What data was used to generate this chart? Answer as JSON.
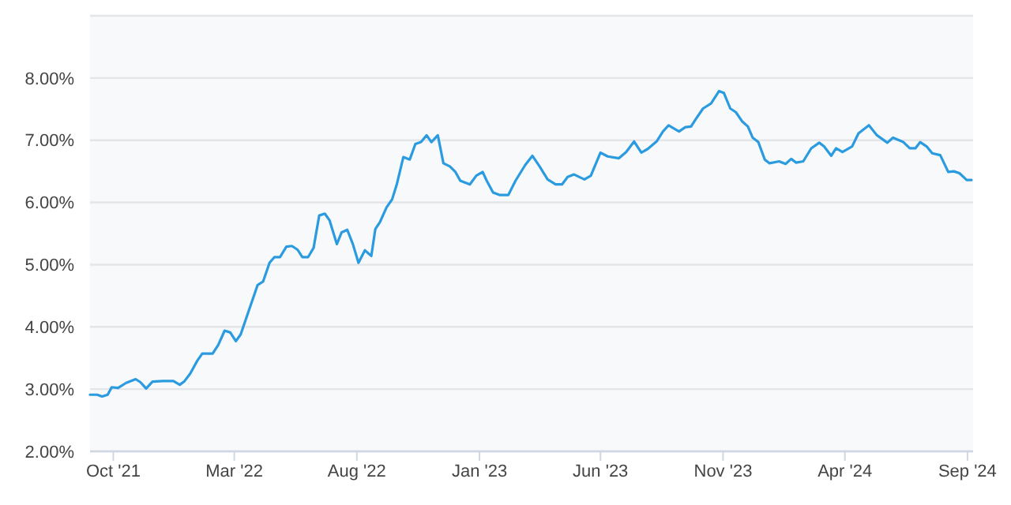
{
  "chart_data": {
    "type": "line",
    "x": [
      "2021-09-02",
      "2021-09-11",
      "2021-09-17",
      "2021-09-24",
      "2021-09-29",
      "2021-10-07",
      "2021-10-17",
      "2021-10-29",
      "2021-11-04",
      "2021-11-11",
      "2021-11-19",
      "2021-12-02",
      "2021-12-15",
      "2021-12-23",
      "2021-12-29",
      "2022-01-05",
      "2022-01-14",
      "2022-01-20",
      "2022-02-02",
      "2022-02-09",
      "2022-02-17",
      "2022-02-24",
      "2022-03-03",
      "2022-03-09",
      "2022-03-17",
      "2022-03-30",
      "2022-04-06",
      "2022-04-14",
      "2022-04-20",
      "2022-04-27",
      "2022-05-05",
      "2022-05-12",
      "2022-05-19",
      "2022-05-25",
      "2022-06-01",
      "2022-06-08",
      "2022-06-15",
      "2022-06-22",
      "2022-06-28",
      "2022-07-07",
      "2022-07-13",
      "2022-07-20",
      "2022-07-27",
      "2022-08-03",
      "2022-08-11",
      "2022-08-19",
      "2022-08-24",
      "2022-08-30",
      "2022-09-07",
      "2022-09-14",
      "2022-09-20",
      "2022-09-28",
      "2022-10-06",
      "2022-10-13",
      "2022-10-20",
      "2022-10-27",
      "2022-11-02",
      "2022-11-10",
      "2022-11-17",
      "2022-11-25",
      "2022-12-02",
      "2022-12-08",
      "2022-12-20",
      "2022-12-28",
      "2023-01-05",
      "2023-01-10",
      "2023-01-18",
      "2023-01-26",
      "2023-02-06",
      "2023-02-15",
      "2023-02-27",
      "2023-03-08",
      "2023-03-17",
      "2023-03-27",
      "2023-04-06",
      "2023-04-14",
      "2023-04-21",
      "2023-04-29",
      "2023-05-12",
      "2023-05-20",
      "2023-06-01",
      "2023-06-10",
      "2023-06-24",
      "2023-07-03",
      "2023-07-13",
      "2023-07-22",
      "2023-07-30",
      "2023-08-10",
      "2023-08-18",
      "2023-08-25",
      "2023-09-07",
      "2023-09-15",
      "2023-09-22",
      "2023-09-28",
      "2023-10-07",
      "2023-10-17",
      "2023-10-27",
      "2023-11-02",
      "2023-11-10",
      "2023-11-17",
      "2023-11-25",
      "2023-12-02",
      "2023-12-08",
      "2023-12-15",
      "2023-12-23",
      "2023-12-29",
      "2024-01-10",
      "2024-01-18",
      "2024-01-25",
      "2024-01-31",
      "2024-02-09",
      "2024-02-19",
      "2024-02-29",
      "2024-03-06",
      "2024-03-15",
      "2024-03-21",
      "2024-03-29",
      "2024-04-10",
      "2024-04-18",
      "2024-05-01",
      "2024-05-11",
      "2024-05-24",
      "2024-05-31",
      "2024-06-13",
      "2024-06-21",
      "2024-06-28",
      "2024-07-04",
      "2024-07-12",
      "2024-07-19",
      "2024-07-29",
      "2024-08-08",
      "2024-08-15",
      "2024-08-22",
      "2024-08-31",
      "2024-09-06"
    ],
    "series": [
      {
        "color": "#2b9be0",
        "values": [
          2.91,
          2.91,
          2.88,
          2.91,
          3.03,
          3.02,
          3.1,
          3.16,
          3.11,
          3.01,
          3.12,
          3.13,
          3.13,
          3.07,
          3.13,
          3.25,
          3.46,
          3.57,
          3.57,
          3.71,
          3.94,
          3.91,
          3.77,
          3.88,
          4.18,
          4.67,
          4.73,
          5.03,
          5.12,
          5.12,
          5.29,
          5.3,
          5.24,
          5.12,
          5.12,
          5.27,
          5.79,
          5.82,
          5.71,
          5.33,
          5.52,
          5.56,
          5.33,
          5.03,
          5.23,
          5.14,
          5.57,
          5.69,
          5.92,
          6.05,
          6.3,
          6.73,
          6.69,
          6.94,
          6.97,
          7.08,
          6.97,
          7.08,
          6.63,
          6.58,
          6.49,
          6.35,
          6.29,
          6.43,
          6.49,
          6.35,
          6.16,
          6.12,
          6.12,
          6.35,
          6.6,
          6.75,
          6.58,
          6.37,
          6.29,
          6.29,
          6.41,
          6.45,
          6.37,
          6.43,
          6.8,
          6.74,
          6.71,
          6.81,
          6.98,
          6.8,
          6.86,
          6.98,
          7.14,
          7.24,
          7.14,
          7.21,
          7.22,
          7.34,
          7.51,
          7.59,
          7.79,
          7.76,
          7.51,
          7.45,
          7.3,
          7.22,
          7.04,
          6.97,
          6.69,
          6.63,
          6.66,
          6.62,
          6.7,
          6.64,
          6.66,
          6.87,
          6.96,
          6.9,
          6.75,
          6.87,
          6.81,
          6.9,
          7.11,
          7.24,
          7.08,
          6.96,
          7.04,
          6.97,
          6.87,
          6.87,
          6.97,
          6.9,
          6.79,
          6.76,
          6.49,
          6.5,
          6.47,
          6.36,
          6.36
        ]
      }
    ],
    "xlim": [
      "2021-09-02",
      "2024-09-08"
    ],
    "xticks": [
      {
        "value": "2021-10-01",
        "label": "Oct '21"
      },
      {
        "value": "2022-03-01",
        "label": "Mar '22"
      },
      {
        "value": "2022-08-01",
        "label": "Aug '22"
      },
      {
        "value": "2023-01-01",
        "label": "Jan '23"
      },
      {
        "value": "2023-06-01",
        "label": "Jun '23"
      },
      {
        "value": "2023-11-01",
        "label": "Nov '23"
      },
      {
        "value": "2024-04-01",
        "label": "Apr '24"
      },
      {
        "value": "2024-09-01",
        "label": "Sep '24"
      }
    ],
    "ylim": [
      2,
      9
    ],
    "yticks": [
      {
        "value": 2,
        "label": "2.00%"
      },
      {
        "value": 3,
        "label": "3.00%"
      },
      {
        "value": 4,
        "label": "4.00%"
      },
      {
        "value": 5,
        "label": "5.00%"
      },
      {
        "value": 6,
        "label": "6.00%"
      },
      {
        "value": 7,
        "label": "7.00%"
      },
      {
        "value": 8,
        "label": "8.00%"
      },
      {
        "value": 9,
        "label": null
      }
    ],
    "grid": "y",
    "marker": "none",
    "line_style": "solid"
  }
}
